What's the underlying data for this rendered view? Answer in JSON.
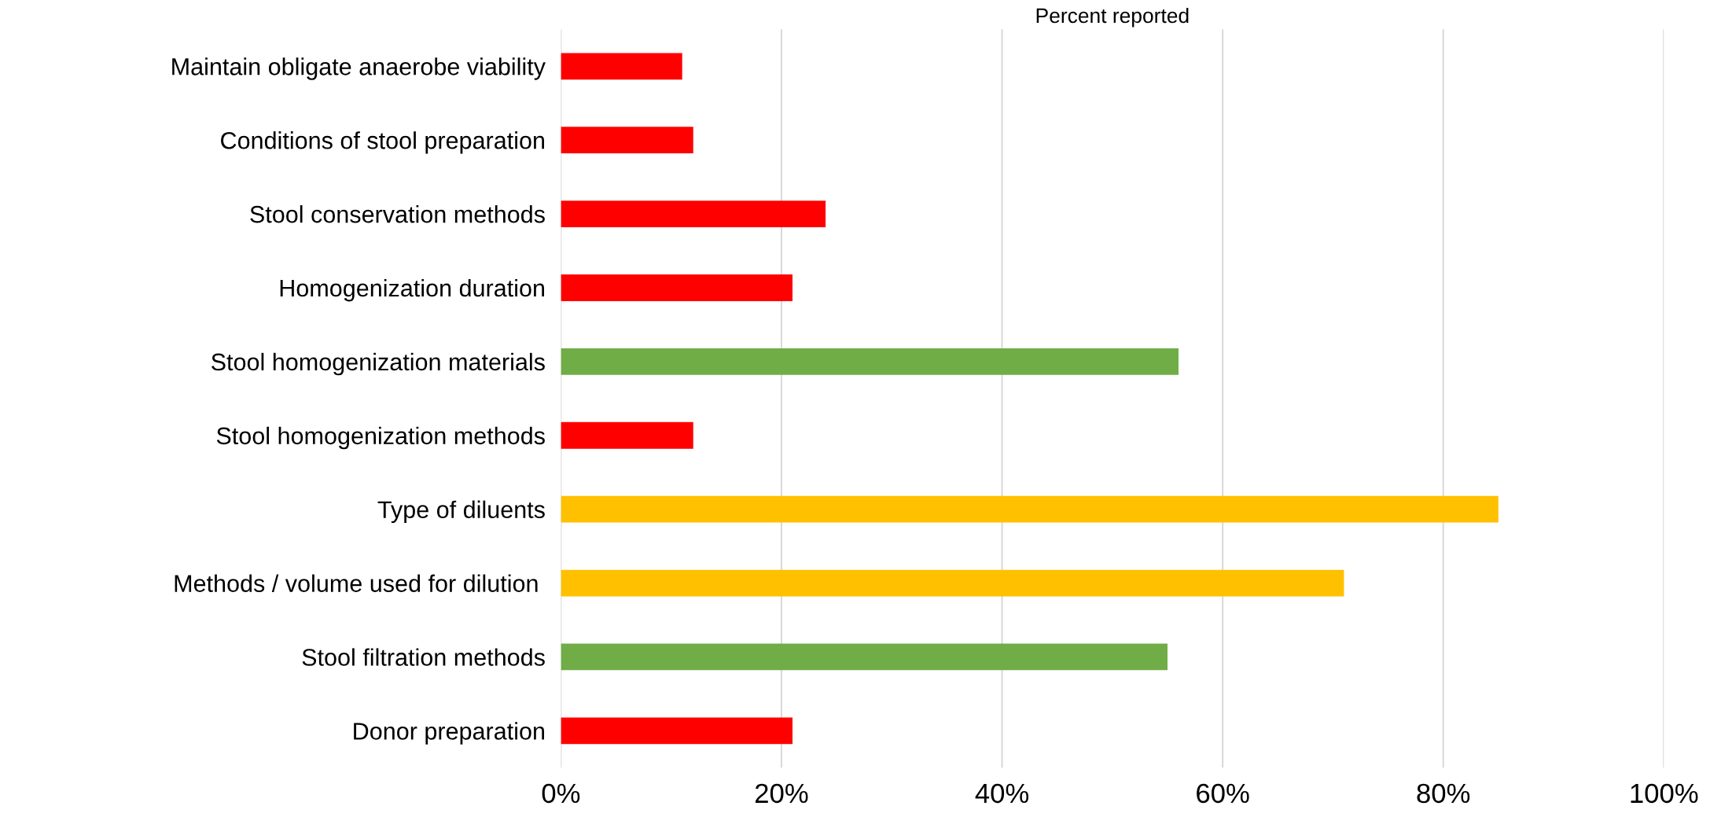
{
  "chart_data": {
    "type": "bar",
    "orientation": "horizontal",
    "xlabel": "Percent reported",
    "categories": [
      "Maintain obligate anaerobe viability",
      "Conditions of stool preparation",
      "Stool conservation methods",
      "Homogenization duration",
      "Stool homogenization materials",
      "Stool homogenization methods",
      "Type of diluents",
      "Methods / volume used for dilution ",
      "Stool filtration methods",
      "Donor preparation"
    ],
    "values": [
      11,
      12,
      24,
      21,
      56,
      12,
      85,
      71,
      55,
      21
    ],
    "colors": [
      "#ff0000",
      "#ff0000",
      "#ff0000",
      "#ff0000",
      "#70ad47",
      "#ff0000",
      "#ffc000",
      "#ffc000",
      "#70ad47",
      "#ff0000"
    ],
    "xlim": [
      0,
      100
    ],
    "xticks": [
      {
        "value": 0,
        "label": "0%"
      },
      {
        "value": 20,
        "label": "20%"
      },
      {
        "value": 40,
        "label": "40%"
      },
      {
        "value": 60,
        "label": "60%"
      },
      {
        "value": 80,
        "label": "80%"
      },
      {
        "value": 100,
        "label": "100%"
      }
    ],
    "grid": "x"
  }
}
